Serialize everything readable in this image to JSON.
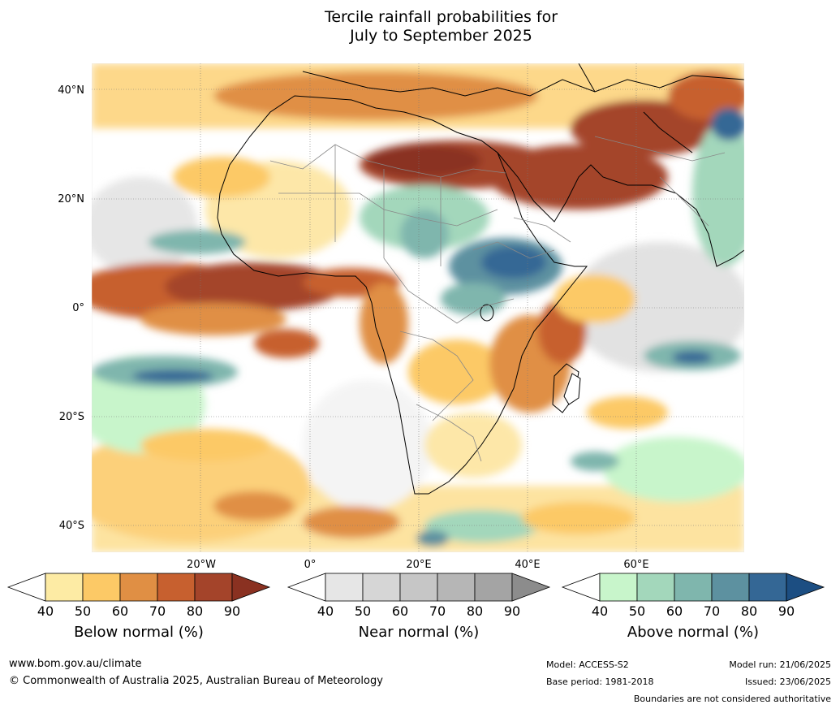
{
  "title": {
    "line1": "Tercile rainfall probabilities for",
    "line2": "July to September 2025"
  },
  "map": {
    "lat_labels": [
      "40°N",
      "20°N",
      "0°",
      "20°S",
      "40°S"
    ],
    "lon_labels": [
      "20°W",
      "0°",
      "20°E",
      "40°E",
      "60°E"
    ]
  },
  "legend": {
    "below": {
      "title": "Below normal (%)",
      "ticks": [
        "40",
        "50",
        "60",
        "70",
        "80",
        "90"
      ],
      "colors": [
        "#ffffff",
        "#fdeba4",
        "#fcc966",
        "#e08f44",
        "#c7602f",
        "#a4442a",
        "#8a3121"
      ]
    },
    "near": {
      "title": "Near normal (%)",
      "ticks": [
        "40",
        "50",
        "60",
        "70",
        "80",
        "90"
      ],
      "colors": [
        "#ffffff",
        "#e6e6e6",
        "#d6d6d6",
        "#c6c6c6",
        "#b6b6b6",
        "#a4a4a4",
        "#8c8c8c"
      ]
    },
    "above": {
      "title": "Above normal (%)",
      "ticks": [
        "40",
        "50",
        "60",
        "70",
        "80",
        "90"
      ],
      "colors": [
        "#ffffff",
        "#c8f5cb",
        "#a3d7bb",
        "#7fb6ad",
        "#5d91a0",
        "#346795",
        "#1c4e82"
      ]
    }
  },
  "footer": {
    "url": "www.bom.gov.au/climate",
    "copyright": "© Commonwealth of Australia 2025, Australian Bureau of Meteorology",
    "model": "Model: ACCESS-S2",
    "base_period": "Base period: 1981-2018",
    "model_run": "Model run: 21/06/2025",
    "issued": "Issued: 23/06/2025",
    "disclaimer": "Boundaries are not considered authoritative"
  }
}
